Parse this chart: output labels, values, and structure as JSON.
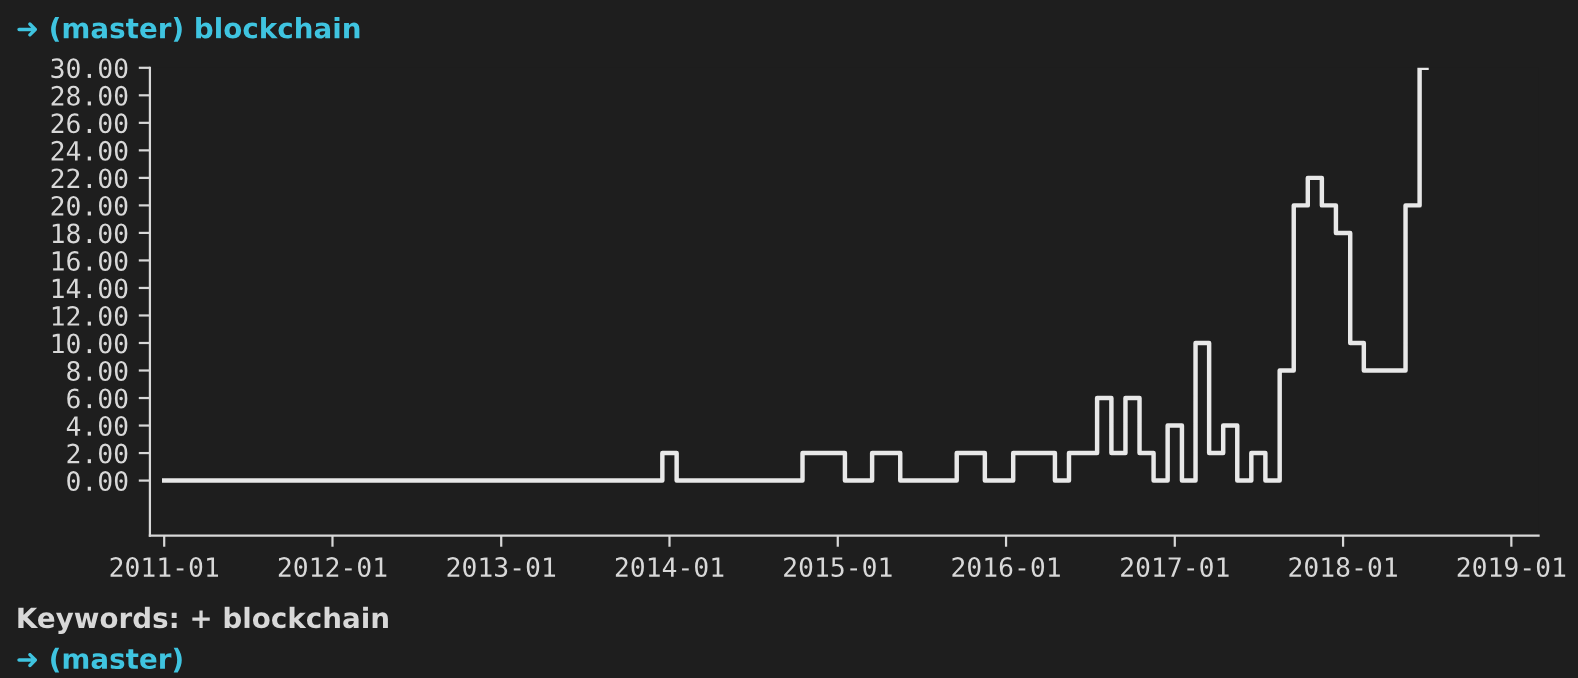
{
  "chart_data": {
    "type": "step",
    "annotations": [
      "➜ (master) blockchain",
      "Keywords: + blockchain",
      "➜ (master)"
    ],
    "x": [
      "2011-01",
      "2011-02",
      "2011-03",
      "2011-04",
      "2011-05",
      "2011-06",
      "2011-07",
      "2011-08",
      "2011-09",
      "2011-10",
      "2011-11",
      "2011-12",
      "2012-01",
      "2012-02",
      "2012-03",
      "2012-04",
      "2012-05",
      "2012-06",
      "2012-07",
      "2012-08",
      "2012-09",
      "2012-10",
      "2012-11",
      "2012-12",
      "2013-01",
      "2013-02",
      "2013-03",
      "2013-04",
      "2013-05",
      "2013-06",
      "2013-07",
      "2013-08",
      "2013-09",
      "2013-10",
      "2013-11",
      "2013-12",
      "2014-01",
      "2014-02",
      "2014-03",
      "2014-04",
      "2014-05",
      "2014-06",
      "2014-07",
      "2014-08",
      "2014-09",
      "2014-10",
      "2014-11",
      "2014-12",
      "2015-01",
      "2015-02",
      "2015-03",
      "2015-04",
      "2015-05",
      "2015-06",
      "2015-07",
      "2015-08",
      "2015-09",
      "2015-10",
      "2015-11",
      "2015-12",
      "2016-01",
      "2016-02",
      "2016-03",
      "2016-04",
      "2016-05",
      "2016-06",
      "2016-07",
      "2016-08",
      "2016-09",
      "2016-10",
      "2016-11",
      "2016-12",
      "2017-01",
      "2017-02",
      "2017-03",
      "2017-04",
      "2017-05",
      "2017-06",
      "2017-07",
      "2017-08",
      "2017-09",
      "2017-10",
      "2017-11",
      "2017-12",
      "2018-01",
      "2018-02",
      "2018-03",
      "2018-04",
      "2018-05",
      "2018-06",
      "2018-07"
    ],
    "series": [
      {
        "color": "#e8e8e8",
        "values": [
          0,
          0,
          0,
          0,
          0,
          0,
          0,
          0,
          0,
          0,
          0,
          0,
          0,
          0,
          0,
          0,
          0,
          0,
          0,
          0,
          0,
          0,
          0,
          0,
          0,
          0,
          0,
          0,
          0,
          0,
          0,
          0,
          0,
          0,
          0,
          0,
          2,
          0,
          0,
          0,
          0,
          0,
          0,
          0,
          0,
          0,
          2,
          2,
          2,
          0,
          0,
          2,
          2,
          0,
          0,
          0,
          0,
          2,
          2,
          0,
          0,
          2,
          2,
          2,
          0,
          2,
          2,
          6,
          2,
          6,
          2,
          0,
          4,
          0,
          10,
          2,
          4,
          0,
          2,
          0,
          8,
          20,
          22,
          20,
          18,
          10,
          8,
          8,
          8,
          20,
          30
        ]
      }
    ],
    "xlim": [
      "2010-12",
      "2019-03"
    ],
    "xticks": [
      "2011-01",
      "2012-01",
      "2013-01",
      "2014-01",
      "2015-01",
      "2016-01",
      "2017-01",
      "2018-01",
      "2019-01"
    ],
    "ylim": [
      -4,
      30
    ],
    "yticks": [
      {
        "value": 0,
        "label": "0.00"
      },
      {
        "value": 2,
        "label": "2.00"
      },
      {
        "value": 4,
        "label": "4.00"
      },
      {
        "value": 6,
        "label": "6.00"
      },
      {
        "value": 8,
        "label": "8.00"
      },
      {
        "value": 10,
        "label": "10.00"
      },
      {
        "value": 12,
        "label": "12.00"
      },
      {
        "value": 14,
        "label": "14.00"
      },
      {
        "value": 16,
        "label": "16.00"
      },
      {
        "value": 18,
        "label": "18.00"
      },
      {
        "value": 20,
        "label": "20.00"
      },
      {
        "value": 22,
        "label": "22.00"
      },
      {
        "value": 24,
        "label": "24.00"
      },
      {
        "value": 26,
        "label": "26.00"
      },
      {
        "value": 28,
        "label": "28.00"
      },
      {
        "value": 30,
        "label": "30.00"
      }
    ],
    "grid": false,
    "legend": false,
    "line_style": "solid",
    "marker": "none"
  }
}
